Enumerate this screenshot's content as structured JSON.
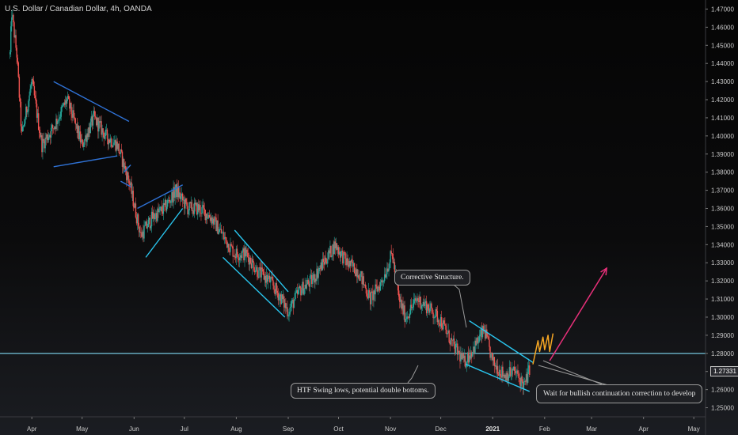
{
  "title": "U.S. Dollar / Canadian Dollar, 4h, OANDA",
  "current_price": "1.27331",
  "colors": {
    "bull": "#26a69a",
    "bear": "#ef5350",
    "trendline_blue": "#2f72d6",
    "trendline_cyan": "#29c5ee",
    "projection_orange": "#f5a623",
    "projection_pink": "#e8307a",
    "horizontal_level": "#7fd8f0"
  },
  "annotations": {
    "corrective": "Corrective Structure.",
    "htf": "HTF Swing lows, potential double bottoms.",
    "wait": "Wait for bullish continuation correction to develop"
  },
  "chart_data": {
    "type": "candlestick",
    "title": "U.S. Dollar / Canadian Dollar, 4h, OANDA",
    "ylim": [
      1.245,
      1.475
    ],
    "y_ticks": [
      "1.25000",
      "1.26000",
      "1.27000",
      "1.28000",
      "1.29000",
      "1.30000",
      "1.31000",
      "1.32000",
      "1.33000",
      "1.34000",
      "1.35000",
      "1.36000",
      "1.37000",
      "1.38000",
      "1.39000",
      "1.40000",
      "1.41000",
      "1.42000",
      "1.43000",
      "1.44000",
      "1.45000",
      "1.46000",
      "1.47000"
    ],
    "x_ticks": [
      "Apr",
      "May",
      "Jun",
      "Jul",
      "Aug",
      "Sep",
      "Oct",
      "Nov",
      "Dec",
      "2021",
      "Feb",
      "Mar",
      "Apr",
      "May"
    ],
    "x_ticks_bold": [
      "2021"
    ],
    "horizontal_levels": [
      1.28
    ],
    "price_path": [
      [
        "2020-03-19",
        1.445
      ],
      [
        "2020-03-20",
        1.468
      ],
      [
        "2020-03-23",
        1.445
      ],
      [
        "2020-03-26",
        1.4
      ],
      [
        "2020-04-01",
        1.43
      ],
      [
        "2020-04-07",
        1.395
      ],
      [
        "2020-04-14",
        1.405
      ],
      [
        "2020-04-22",
        1.42
      ],
      [
        "2020-05-01",
        1.395
      ],
      [
        "2020-05-08",
        1.41
      ],
      [
        "2020-05-15",
        1.4
      ],
      [
        "2020-05-22",
        1.395
      ],
      [
        "2020-05-29",
        1.375
      ],
      [
        "2020-06-05",
        1.345
      ],
      [
        "2020-06-12",
        1.355
      ],
      [
        "2020-06-19",
        1.36
      ],
      [
        "2020-06-26",
        1.37
      ],
      [
        "2020-07-03",
        1.36
      ],
      [
        "2020-07-10",
        1.36
      ],
      [
        "2020-07-17",
        1.355
      ],
      [
        "2020-07-24",
        1.345
      ],
      [
        "2020-07-31",
        1.335
      ],
      [
        "2020-08-07",
        1.335
      ],
      [
        "2020-08-14",
        1.325
      ],
      [
        "2020-08-21",
        1.32
      ],
      [
        "2020-08-28",
        1.31
      ],
      [
        "2020-09-01",
        1.303
      ],
      [
        "2020-09-08",
        1.315
      ],
      [
        "2020-09-15",
        1.32
      ],
      [
        "2020-09-22",
        1.33
      ],
      [
        "2020-09-29",
        1.34
      ],
      [
        "2020-10-06",
        1.33
      ],
      [
        "2020-10-13",
        1.325
      ],
      [
        "2020-10-20",
        1.31
      ],
      [
        "2020-10-27",
        1.32
      ],
      [
        "2020-11-02",
        1.335
      ],
      [
        "2020-11-06",
        1.31
      ],
      [
        "2020-11-10",
        1.3
      ],
      [
        "2020-11-17",
        1.31
      ],
      [
        "2020-11-24",
        1.305
      ],
      [
        "2020-12-01",
        1.298
      ],
      [
        "2020-12-08",
        1.285
      ],
      [
        "2020-12-15",
        1.275
      ],
      [
        "2020-12-22",
        1.285
      ],
      [
        "2020-12-27",
        1.293
      ],
      [
        "2021-01-01",
        1.275
      ],
      [
        "2021-01-08",
        1.268
      ],
      [
        "2021-01-14",
        1.27
      ],
      [
        "2021-01-20",
        1.262
      ],
      [
        "2021-01-23",
        1.272
      ]
    ],
    "trendlines": [
      {
        "color": "trendline_blue",
        "points": [
          [
            "2020-04-14",
            1.43
          ],
          [
            "2020-05-29",
            1.408
          ]
        ]
      },
      {
        "color": "trendline_blue",
        "points": [
          [
            "2020-04-14",
            1.383
          ],
          [
            "2020-05-22",
            1.389
          ]
        ]
      },
      {
        "color": "trendline_blue",
        "points": [
          [
            "2020-05-26",
            1.38
          ],
          [
            "2020-05-30",
            1.384
          ]
        ]
      },
      {
        "color": "trendline_blue",
        "points": [
          [
            "2020-05-24",
            1.375
          ],
          [
            "2020-05-30",
            1.372
          ]
        ]
      },
      {
        "color": "trendline_blue",
        "points": [
          [
            "2020-06-03",
            1.36
          ],
          [
            "2020-06-30",
            1.373
          ]
        ]
      },
      {
        "color": "trendline_cyan",
        "points": [
          [
            "2020-06-08",
            1.333
          ],
          [
            "2020-06-30",
            1.36
          ]
        ]
      },
      {
        "color": "trendline_cyan",
        "points": [
          [
            "2020-07-31",
            1.348
          ],
          [
            "2020-09-01",
            1.314
          ]
        ]
      },
      {
        "color": "trendline_cyan",
        "points": [
          [
            "2020-07-24",
            1.333
          ],
          [
            "2020-08-30",
            1.3
          ]
        ]
      },
      {
        "color": "trendline_cyan",
        "points": [
          [
            "2020-12-18",
            1.298
          ],
          [
            "2021-01-25",
            1.275
          ]
        ]
      },
      {
        "color": "trendline_cyan",
        "points": [
          [
            "2020-12-16",
            1.274
          ],
          [
            "2021-01-23",
            1.259
          ]
        ]
      }
    ],
    "projections": [
      {
        "color": "projection_orange",
        "points": [
          [
            "2021-01-25",
            1.274
          ],
          [
            "2021-01-28",
            1.287
          ],
          [
            "2021-01-29",
            1.281
          ],
          [
            "2021-01-31",
            1.289
          ],
          [
            "2021-02-01",
            1.282
          ],
          [
            "2021-02-03",
            1.29
          ],
          [
            "2021-02-04",
            1.281
          ],
          [
            "2021-02-06",
            1.291
          ]
        ]
      },
      {
        "color": "projection_pink",
        "points": [
          [
            "2021-02-04",
            1.276
          ],
          [
            "2021-03-10",
            1.327
          ]
        ]
      }
    ]
  }
}
